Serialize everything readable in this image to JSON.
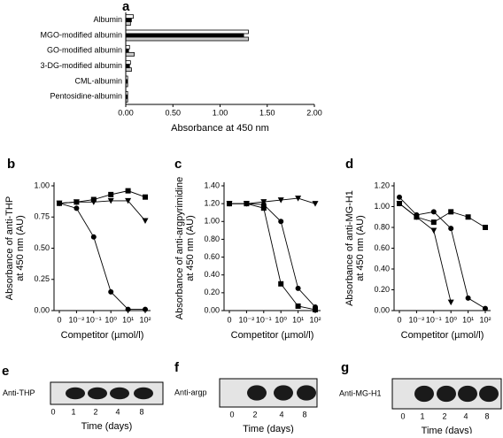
{
  "chart_data": [
    {
      "panel": "a",
      "type": "hbar",
      "categories": [
        "Albumin",
        "MGO-modified albumin",
        "GO-modified albumin",
        "3-DG-modified albumin",
        "CML-albumin",
        "Pentosidine-albumin"
      ],
      "series": [
        {
          "color": "#ffffff",
          "values": [
            0.08,
            1.3,
            0.04,
            0.05,
            0.02,
            0.02
          ]
        },
        {
          "color": "#000000",
          "values": [
            0.06,
            1.25,
            0.03,
            0.04,
            0.02,
            0.02
          ]
        },
        {
          "color": "#cccccc",
          "values": [
            0.05,
            1.3,
            0.09,
            0.06,
            0.02,
            0.02
          ]
        }
      ],
      "xlim": [
        0,
        2
      ],
      "xticks": [
        {
          "value": 0,
          "label": "0.00"
        },
        {
          "value": 0.5,
          "label": "0.50"
        },
        {
          "value": 1,
          "label": "1.00"
        },
        {
          "value": 1.5,
          "label": "1.50"
        },
        {
          "value": 2,
          "label": "2.00"
        }
      ],
      "xlabel": "Absorbance at 450 nm"
    },
    {
      "panel": "b",
      "type": "line",
      "categories": [
        "0",
        "10⁻²",
        "10⁻¹",
        "10⁰",
        "10¹",
        "10²"
      ],
      "series": [
        {
          "marker": "square",
          "color": "#000000",
          "values": [
            0.86,
            0.87,
            0.89,
            0.93,
            0.96,
            0.91
          ]
        },
        {
          "marker": "triangle",
          "color": "#000000",
          "values": [
            0.86,
            0.87,
            0.87,
            0.88,
            0.88,
            0.72
          ]
        },
        {
          "marker": "circle",
          "color": "#000000",
          "values": [
            0.86,
            0.82,
            0.59,
            0.15,
            0.01,
            0.01
          ]
        }
      ],
      "ylim": [
        0,
        1
      ],
      "yticks": [
        {
          "value": 0,
          "label": "0.00"
        },
        {
          "value": 0.25,
          "label": "0.25"
        },
        {
          "value": 0.5,
          "label": "0.50"
        },
        {
          "value": 0.75,
          "label": "0.75"
        },
        {
          "value": 1,
          "label": "1.00"
        }
      ],
      "ylabel": [
        "Absorbance of anti-THP",
        "at 450 nm (AU)"
      ],
      "xlabel": "Competitor (µmol/l)"
    },
    {
      "panel": "c",
      "type": "line",
      "categories": [
        "0",
        "10⁻²",
        "10⁻¹",
        "10⁰",
        "10¹",
        "10²"
      ],
      "series": [
        {
          "marker": "triangle",
          "color": "#000000",
          "values": [
            1.2,
            1.2,
            1.22,
            1.24,
            1.26,
            1.2
          ]
        },
        {
          "marker": "square",
          "color": "#000000",
          "values": [
            1.2,
            1.2,
            1.15,
            0.3,
            0.05,
            0.01
          ]
        },
        {
          "marker": "circle",
          "color": "#000000",
          "values": [
            1.2,
            1.2,
            1.19,
            1.0,
            0.25,
            0.04
          ]
        }
      ],
      "ylim": [
        0,
        1.4
      ],
      "yticks": [
        {
          "value": 0,
          "label": "0.00"
        },
        {
          "value": 0.2,
          "label": "0.20"
        },
        {
          "value": 0.4,
          "label": "0.40"
        },
        {
          "value": 0.6,
          "label": "0.60"
        },
        {
          "value": 0.8,
          "label": "0.80"
        },
        {
          "value": 1,
          "label": "1.00"
        },
        {
          "value": 1.2,
          "label": "1.20"
        },
        {
          "value": 1.4,
          "label": "1.40"
        }
      ],
      "ylabel": [
        "Absorbance of anti-argpyrimidine",
        "at 450 nm (AU)"
      ],
      "xlabel": "Competitor (µmol/l)"
    },
    {
      "panel": "d",
      "type": "line",
      "categories": [
        "0",
        "10⁻²",
        "10⁻¹",
        "10⁰",
        "10¹",
        "10²"
      ],
      "series": [
        {
          "marker": "square",
          "color": "#000000",
          "values": [
            1.03,
            0.9,
            0.85,
            0.95,
            0.9,
            0.8
          ]
        },
        {
          "marker": "circle",
          "color": "#000000",
          "values": [
            1.09,
            0.92,
            0.95,
            0.79,
            0.12,
            0.02
          ]
        },
        {
          "marker": "triangle",
          "color": "#000000",
          "values": [
            1.03,
            0.9,
            0.77,
            0.08,
            null,
            null
          ]
        }
      ],
      "ylim": [
        0,
        1.2
      ],
      "yticks": [
        {
          "value": 0,
          "label": "0.00"
        },
        {
          "value": 0.2,
          "label": "0.20"
        },
        {
          "value": 0.4,
          "label": "0.40"
        },
        {
          "value": 0.6,
          "label": "0.60"
        },
        {
          "value": 0.8,
          "label": "0.80"
        },
        {
          "value": 1,
          "label": "1.00"
        },
        {
          "value": 1.2,
          "label": "1.20"
        }
      ],
      "ylabel": [
        "Absorbance of anti-MG-H1",
        "at 450 nm (AU)"
      ],
      "xlabel": "Competitor (µmol/l)"
    }
  ],
  "blots": [
    {
      "panel": "e",
      "antibody": "Anti-THP",
      "lanes": [
        "0",
        "1",
        "2",
        "4",
        "8"
      ],
      "xlabel": "Time (days)"
    },
    {
      "panel": "f",
      "antibody": "Anti-argp",
      "lanes": [
        "0",
        "2",
        "4",
        "8"
      ],
      "xlabel": "Time (days)"
    },
    {
      "panel": "g",
      "antibody": "Anti-MG-H1",
      "lanes": [
        "0",
        "1",
        "2",
        "4",
        "8"
      ],
      "xlabel": "Time (days)"
    }
  ]
}
